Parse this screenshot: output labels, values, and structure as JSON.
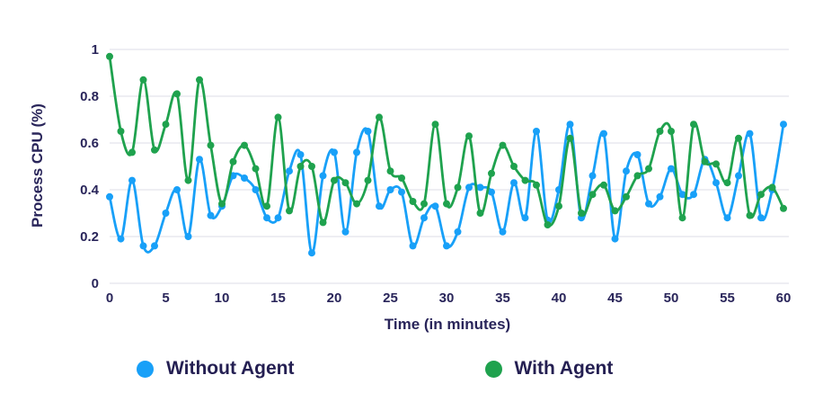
{
  "chart_data": {
    "type": "line",
    "title": "",
    "xlabel": "Time (in minutes)",
    "ylabel": "Process CPU (%)",
    "xlim": [
      0,
      60
    ],
    "ylim": [
      0,
      1
    ],
    "x_ticks": [
      0,
      5,
      10,
      15,
      20,
      25,
      30,
      35,
      40,
      45,
      50,
      55,
      60
    ],
    "y_ticks": [
      0,
      0.2,
      0.4,
      0.6,
      0.8,
      1
    ],
    "grid": "horizontal",
    "legend_position": "bottom",
    "x": [
      0,
      1,
      2,
      3,
      4,
      5,
      6,
      7,
      8,
      9,
      10,
      11,
      12,
      13,
      14,
      15,
      16,
      17,
      18,
      19,
      20,
      21,
      22,
      23,
      24,
      25,
      26,
      27,
      28,
      29,
      30,
      31,
      32,
      33,
      34,
      35,
      36,
      37,
      38,
      39,
      40,
      41,
      42,
      43,
      44,
      45,
      46,
      47,
      48,
      49,
      50,
      51,
      52,
      53,
      54,
      55,
      56,
      57,
      58,
      59,
      60
    ],
    "series": [
      {
        "name": "Without Agent",
        "color": "#18a0f8",
        "values": [
          0.37,
          0.19,
          0.44,
          0.16,
          0.16,
          0.3,
          0.4,
          0.2,
          0.53,
          0.29,
          0.33,
          0.46,
          0.45,
          0.4,
          0.28,
          0.28,
          0.48,
          0.55,
          0.13,
          0.46,
          0.56,
          0.22,
          0.56,
          0.65,
          0.33,
          0.4,
          0.39,
          0.16,
          0.28,
          0.33,
          0.16,
          0.22,
          0.41,
          0.41,
          0.39,
          0.22,
          0.43,
          0.28,
          0.65,
          0.27,
          0.4,
          0.68,
          0.28,
          0.46,
          0.64,
          0.19,
          0.48,
          0.55,
          0.34,
          0.37,
          0.49,
          0.38,
          0.38,
          0.53,
          0.43,
          0.28,
          0.46,
          0.64,
          0.28,
          0.4,
          0.68
        ]
      },
      {
        "name": "With Agent",
        "color": "#1fa24e",
        "values": [
          0.97,
          0.65,
          0.56,
          0.87,
          0.57,
          0.68,
          0.81,
          0.44,
          0.87,
          0.59,
          0.34,
          0.52,
          0.59,
          0.49,
          0.33,
          0.71,
          0.31,
          0.5,
          0.5,
          0.26,
          0.44,
          0.43,
          0.34,
          0.44,
          0.71,
          0.48,
          0.45,
          0.35,
          0.34,
          0.68,
          0.34,
          0.41,
          0.63,
          0.3,
          0.47,
          0.59,
          0.5,
          0.44,
          0.42,
          0.25,
          0.33,
          0.62,
          0.3,
          0.38,
          0.42,
          0.31,
          0.37,
          0.46,
          0.49,
          0.65,
          0.65,
          0.28,
          0.68,
          0.52,
          0.51,
          0.43,
          0.62,
          0.29,
          0.38,
          0.41,
          0.32
        ]
      }
    ],
    "gridline_color": "#e9e9ef"
  }
}
